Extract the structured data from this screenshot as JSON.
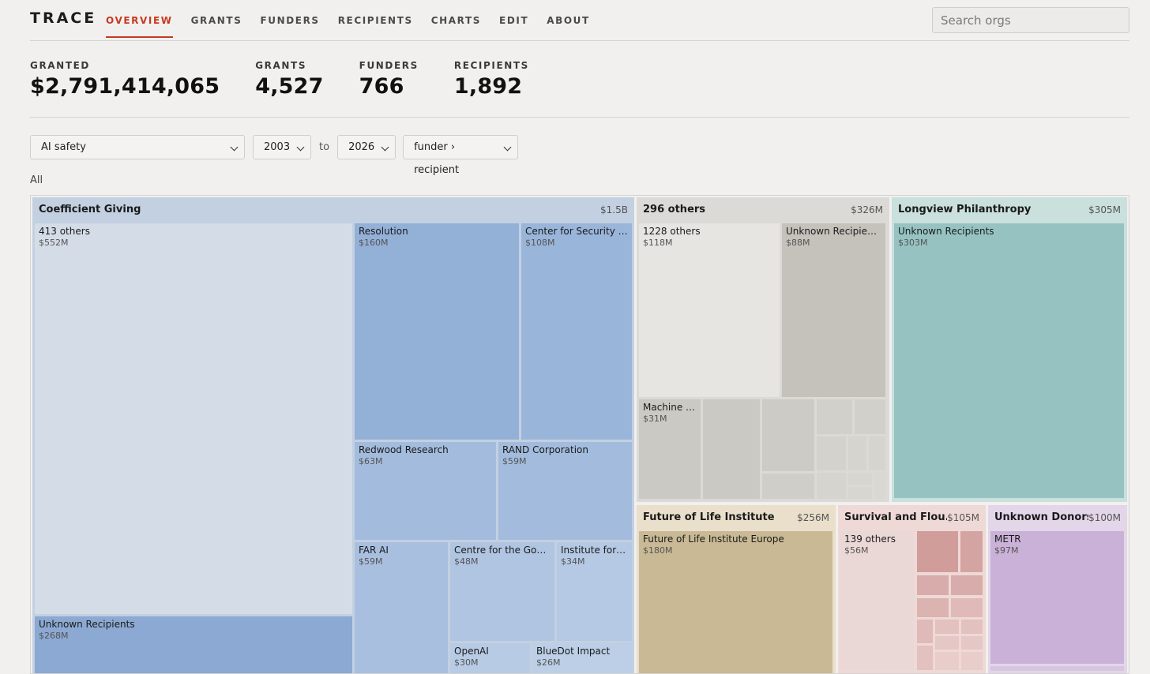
{
  "app": {
    "brand": "TRACE"
  },
  "nav": [
    {
      "label": "OVERVIEW",
      "active": true
    },
    {
      "label": "GRANTS"
    },
    {
      "label": "FUNDERS"
    },
    {
      "label": "RECIPIENTS"
    },
    {
      "label": "CHARTS"
    },
    {
      "label": "EDIT"
    },
    {
      "label": "ABOUT"
    }
  ],
  "search": {
    "placeholder": "Search orgs",
    "value": ""
  },
  "stats": [
    {
      "label": "GRANTED",
      "value": "$2,791,414,065"
    },
    {
      "label": "GRANTS",
      "value": "4,527"
    },
    {
      "label": "FUNDERS",
      "value": "766"
    },
    {
      "label": "RECIPIENTS",
      "value": "1,892"
    }
  ],
  "filters": {
    "topic": "AI safety",
    "from_year": "2003",
    "to_label": "to",
    "to_year": "2026",
    "grouping": "funder › recipient"
  },
  "breadcrumb": "All",
  "treemap": {
    "groups": [
      {
        "name": "Coefficient Giving",
        "amount": "$1.5B",
        "color": "#c3d0e1",
        "children": [
          {
            "name": "413 others",
            "amount": "$552M",
            "color": "#d4dde7"
          },
          {
            "name": "Unknown Recipients",
            "amount": "$268M",
            "color": "#8ba9d2"
          },
          {
            "name": "Resolution",
            "amount": "$160M",
            "color": "#93b0d7"
          },
          {
            "name": "Center for Security a...",
            "amount": "$108M",
            "color": "#9ab5da"
          },
          {
            "name": "Redwood Research",
            "amount": "$63M",
            "color": "#a3bcdd"
          },
          {
            "name": "RAND Corporation",
            "amount": "$59M",
            "color": "#a3bcdd"
          },
          {
            "name": "FAR AI",
            "amount": "$59M",
            "color": "#a8bfdf"
          },
          {
            "name": "Centre for the Gover...",
            "amount": "$48M",
            "color": "#b0c5e2"
          },
          {
            "name": "Institute for ...",
            "amount": "$34M",
            "color": "#b5c9e4"
          },
          {
            "name": "OpenAI",
            "amount": "$30M",
            "color": "#b8cbe5"
          },
          {
            "name": "BlueDot Impact",
            "amount": "$26M",
            "color": "#bccfe6"
          }
        ]
      },
      {
        "name": "296 others",
        "amount": "$326M",
        "color": "#dcdad6",
        "children": [
          {
            "name": "1228 others",
            "amount": "$118M",
            "color": "#e7e5e2"
          },
          {
            "name": "Unknown Recipients",
            "amount": "$88M",
            "color": "#c5c2bc"
          },
          {
            "name": "Machine I...",
            "amount": "$31M",
            "color": "#cbc9c3"
          }
        ]
      },
      {
        "name": "Longview Philanthropy",
        "amount": "$305M",
        "color": "#c9e0dd",
        "children": [
          {
            "name": "Unknown Recipients",
            "amount": "$303M",
            "color": "#96c3c2"
          }
        ]
      },
      {
        "name": "Future of Life Institute",
        "amount": "$256M",
        "color": "#e9dfcb",
        "children": [
          {
            "name": "Future of Life Institute Europe",
            "amount": "$180M",
            "color": "#c9b995"
          }
        ]
      },
      {
        "name": "Survival and Flou...",
        "amount": "$105M",
        "color": "#efd9d7",
        "children": [
          {
            "name": "139 others",
            "amount": "$56M",
            "color": "#ead8d6"
          }
        ]
      },
      {
        "name": "Unknown Donors",
        "amount": "$100M",
        "color": "#e2d6e8",
        "children": [
          {
            "name": "METR",
            "amount": "$97M",
            "color": "#c9b1d7"
          }
        ]
      }
    ]
  }
}
